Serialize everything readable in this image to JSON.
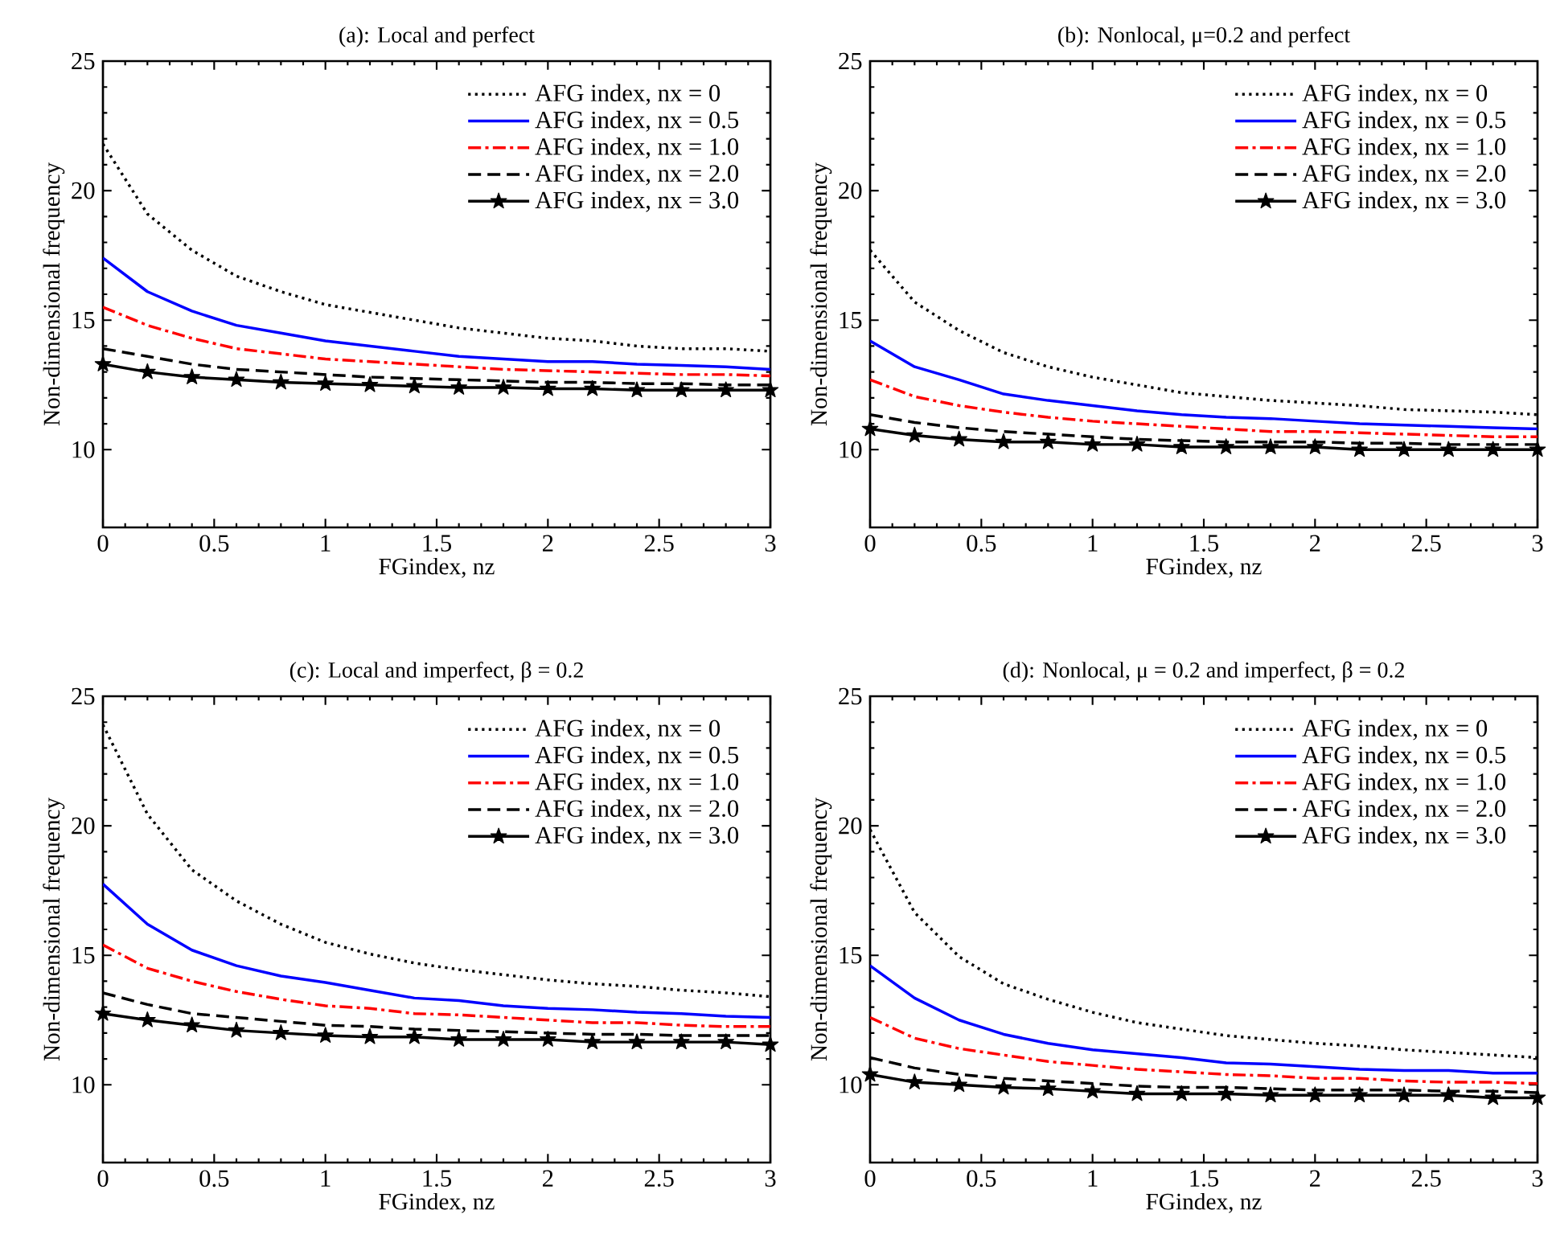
{
  "chart_data": [
    {
      "type": "line",
      "title": "(a): Local and perfect",
      "xlabel": "FGindex, nz",
      "ylabel": "Non-dimensional frequency",
      "x": [
        0,
        0.2,
        0.4,
        0.6,
        0.8,
        1.0,
        1.2,
        1.4,
        1.6,
        1.8,
        2.0,
        2.2,
        2.4,
        2.6,
        2.8,
        3.0
      ],
      "xlim": [
        0,
        3
      ],
      "ylim": [
        7,
        25
      ],
      "xticks": [
        0,
        0.5,
        1,
        1.5,
        2,
        2.5,
        3
      ],
      "yticks": [
        10,
        15,
        20,
        25
      ],
      "legend": "top right",
      "series": [
        {
          "name": "AFG index, nx = 0",
          "color": "#000000",
          "line_style": "dotted",
          "marker": "none",
          "values": [
            21.8,
            19.1,
            17.7,
            16.7,
            16.1,
            15.6,
            15.3,
            15.0,
            14.7,
            14.5,
            14.3,
            14.2,
            14.0,
            13.9,
            13.9,
            13.8
          ]
        },
        {
          "name": "AFG index, nx = 0.5",
          "color": "#0000ff",
          "line_style": "solid",
          "marker": "none",
          "values": [
            17.4,
            16.1,
            15.35,
            14.8,
            14.5,
            14.2,
            14.0,
            13.8,
            13.6,
            13.5,
            13.4,
            13.4,
            13.3,
            13.25,
            13.2,
            13.1
          ]
        },
        {
          "name": "AFG index, nx = 1.0",
          "color": "#ff0000",
          "line_style": "dashdot",
          "marker": "none",
          "values": [
            15.5,
            14.8,
            14.3,
            13.9,
            13.7,
            13.5,
            13.4,
            13.3,
            13.2,
            13.1,
            13.05,
            13.0,
            12.95,
            12.9,
            12.9,
            12.85
          ]
        },
        {
          "name": "AFG index, nx = 2.0",
          "color": "#000000",
          "line_style": "dashed",
          "marker": "none",
          "values": [
            13.9,
            13.6,
            13.3,
            13.1,
            13.0,
            12.9,
            12.8,
            12.75,
            12.7,
            12.65,
            12.6,
            12.6,
            12.55,
            12.55,
            12.5,
            12.5
          ]
        },
        {
          "name": "AFG index, nx = 3.0",
          "color": "#000000",
          "line_style": "solid",
          "marker": "star",
          "values": [
            13.3,
            13.0,
            12.8,
            12.7,
            12.6,
            12.55,
            12.5,
            12.45,
            12.4,
            12.4,
            12.35,
            12.35,
            12.3,
            12.3,
            12.3,
            12.3
          ]
        }
      ]
    },
    {
      "type": "line",
      "title": "(b): Nonlocal,  μ=0.2 and perfect",
      "xlabel": "FGindex, nz",
      "ylabel": "Non-dimensional frequency",
      "x": [
        0,
        0.2,
        0.4,
        0.6,
        0.8,
        1.0,
        1.2,
        1.4,
        1.6,
        1.8,
        2.0,
        2.2,
        2.4,
        2.6,
        2.8,
        3.0
      ],
      "xlim": [
        0,
        3
      ],
      "ylim": [
        7,
        25
      ],
      "xticks": [
        0,
        0.5,
        1,
        1.5,
        2,
        2.5,
        3
      ],
      "yticks": [
        10,
        15,
        20,
        25
      ],
      "legend": "top right",
      "series": [
        {
          "name": "AFG index, nx = 0",
          "color": "#000000",
          "line_style": "dotted",
          "marker": "none",
          "values": [
            17.7,
            15.7,
            14.6,
            13.75,
            13.2,
            12.8,
            12.5,
            12.2,
            12.05,
            11.9,
            11.8,
            11.7,
            11.55,
            11.5,
            11.45,
            11.35
          ]
        },
        {
          "name": "AFG index, nx = 0.5",
          "color": "#0000ff",
          "line_style": "solid",
          "marker": "none",
          "values": [
            14.2,
            13.2,
            12.7,
            12.15,
            11.9,
            11.7,
            11.5,
            11.35,
            11.25,
            11.2,
            11.1,
            11.0,
            10.95,
            10.9,
            10.85,
            10.8
          ]
        },
        {
          "name": "AFG index, nx = 1.0",
          "color": "#ff0000",
          "line_style": "dashdot",
          "marker": "none",
          "values": [
            12.7,
            12.05,
            11.7,
            11.45,
            11.25,
            11.1,
            11.0,
            10.9,
            10.8,
            10.7,
            10.7,
            10.65,
            10.6,
            10.55,
            10.5,
            10.5
          ]
        },
        {
          "name": "AFG index, nx = 2.0",
          "color": "#000000",
          "line_style": "dashed",
          "marker": "none",
          "values": [
            11.35,
            11.05,
            10.85,
            10.7,
            10.6,
            10.5,
            10.4,
            10.35,
            10.3,
            10.3,
            10.3,
            10.25,
            10.25,
            10.2,
            10.2,
            10.2
          ]
        },
        {
          "name": "AFG index, nx = 3.0",
          "color": "#000000",
          "line_style": "solid",
          "marker": "star",
          "values": [
            10.8,
            10.55,
            10.4,
            10.3,
            10.3,
            10.2,
            10.2,
            10.1,
            10.1,
            10.1,
            10.1,
            10.0,
            10.0,
            10.0,
            10.0,
            10.0
          ]
        }
      ]
    },
    {
      "type": "line",
      "title": "(c): Local and imperfect,  β = 0.2",
      "xlabel": "FGindex, nz",
      "ylabel": "Non-dimensional frequency",
      "x": [
        0,
        0.2,
        0.4,
        0.6,
        0.8,
        1.0,
        1.2,
        1.4,
        1.6,
        1.8,
        2.0,
        2.2,
        2.4,
        2.6,
        2.8,
        3.0
      ],
      "xlim": [
        0,
        3
      ],
      "ylim": [
        7,
        25
      ],
      "xticks": [
        0,
        0.5,
        1,
        1.5,
        2,
        2.5,
        3
      ],
      "yticks": [
        10,
        15,
        20,
        25
      ],
      "legend": "top right",
      "series": [
        {
          "name": "AFG index, nx = 0",
          "color": "#000000",
          "line_style": "dotted",
          "marker": "none",
          "values": [
            23.9,
            20.45,
            18.3,
            17.1,
            16.2,
            15.5,
            15.05,
            14.7,
            14.45,
            14.25,
            14.05,
            13.9,
            13.8,
            13.65,
            13.55,
            13.4
          ]
        },
        {
          "name": "AFG index, nx = 0.5",
          "color": "#0000ff",
          "line_style": "solid",
          "marker": "none",
          "values": [
            17.75,
            16.2,
            15.2,
            14.6,
            14.2,
            13.95,
            13.65,
            13.35,
            13.25,
            13.05,
            12.95,
            12.9,
            12.8,
            12.75,
            12.65,
            12.6
          ]
        },
        {
          "name": "AFG index, nx = 1.0",
          "color": "#ff0000",
          "line_style": "dashdot",
          "marker": "none",
          "values": [
            15.4,
            14.5,
            14.0,
            13.6,
            13.3,
            13.05,
            12.95,
            12.75,
            12.7,
            12.6,
            12.5,
            12.4,
            12.4,
            12.3,
            12.25,
            12.25
          ]
        },
        {
          "name": "AFG index, nx = 2.0",
          "color": "#000000",
          "line_style": "dashed",
          "marker": "none",
          "values": [
            13.55,
            13.1,
            12.75,
            12.6,
            12.45,
            12.3,
            12.25,
            12.15,
            12.1,
            12.05,
            12.0,
            11.95,
            11.95,
            11.9,
            11.9,
            11.9
          ]
        },
        {
          "name": "AFG index, nx = 3.0",
          "color": "#000000",
          "line_style": "solid",
          "marker": "star",
          "values": [
            12.75,
            12.5,
            12.3,
            12.1,
            12.0,
            11.9,
            11.85,
            11.85,
            11.75,
            11.75,
            11.75,
            11.65,
            11.65,
            11.65,
            11.65,
            11.55
          ]
        }
      ]
    },
    {
      "type": "line",
      "title": "(d): Nonlocal,  μ = 0.2 and imperfect, β = 0.2",
      "xlabel": "FGindex, nz",
      "ylabel": "Non-dimensional frequency",
      "x": [
        0,
        0.2,
        0.4,
        0.6,
        0.8,
        1.0,
        1.2,
        1.4,
        1.6,
        1.8,
        2.0,
        2.2,
        2.4,
        2.6,
        2.8,
        3.0
      ],
      "xlim": [
        0,
        3
      ],
      "ylim": [
        7,
        25
      ],
      "xticks": [
        0,
        0.5,
        1,
        1.5,
        2,
        2.5,
        3
      ],
      "yticks": [
        10,
        15,
        20,
        25
      ],
      "legend": "top right",
      "series": [
        {
          "name": "AFG index, nx = 0",
          "color": "#000000",
          "line_style": "dotted",
          "marker": "none",
          "values": [
            19.85,
            16.65,
            14.95,
            13.9,
            13.3,
            12.8,
            12.4,
            12.15,
            11.9,
            11.75,
            11.6,
            11.5,
            11.35,
            11.25,
            11.15,
            11.05
          ]
        },
        {
          "name": "AFG index, nx = 0.5",
          "color": "#0000ff",
          "line_style": "solid",
          "marker": "none",
          "values": [
            14.6,
            13.35,
            12.5,
            11.95,
            11.6,
            11.35,
            11.2,
            11.05,
            10.85,
            10.8,
            10.7,
            10.6,
            10.55,
            10.55,
            10.45,
            10.45
          ]
        },
        {
          "name": "AFG index, nx = 1.0",
          "color": "#ff0000",
          "line_style": "dashdot",
          "marker": "none",
          "values": [
            12.6,
            11.8,
            11.4,
            11.15,
            10.9,
            10.75,
            10.6,
            10.5,
            10.4,
            10.35,
            10.25,
            10.25,
            10.15,
            10.1,
            10.1,
            10.05
          ]
        },
        {
          "name": "AFG index, nx = 2.0",
          "color": "#000000",
          "line_style": "dashed",
          "marker": "none",
          "values": [
            11.05,
            10.65,
            10.4,
            10.25,
            10.15,
            10.05,
            9.95,
            9.9,
            9.9,
            9.85,
            9.8,
            9.8,
            9.8,
            9.75,
            9.75,
            9.7
          ]
        },
        {
          "name": "AFG index, nx = 3.0",
          "color": "#000000",
          "line_style": "solid",
          "marker": "star",
          "values": [
            10.4,
            10.1,
            10.0,
            9.9,
            9.85,
            9.75,
            9.65,
            9.65,
            9.65,
            9.6,
            9.6,
            9.6,
            9.6,
            9.6,
            9.5,
            9.5
          ]
        }
      ]
    }
  ]
}
